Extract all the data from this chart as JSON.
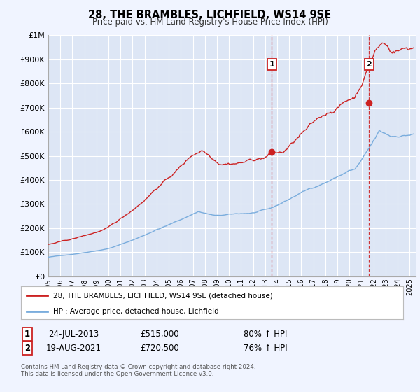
{
  "title": "28, THE BRAMBLES, LICHFIELD, WS14 9SE",
  "subtitle": "Price paid vs. HM Land Registry's House Price Index (HPI)",
  "bg_color": "#f0f4ff",
  "plot_bg_color": "#dde6f5",
  "grid_color": "#ffffff",
  "hpi_color": "#7aaddd",
  "price_color": "#cc2222",
  "ylim": [
    0,
    1000000
  ],
  "yticks": [
    0,
    100000,
    200000,
    300000,
    400000,
    500000,
    600000,
    700000,
    800000,
    900000,
    1000000
  ],
  "ytick_labels": [
    "£0",
    "£100K",
    "£200K",
    "£300K",
    "£400K",
    "£500K",
    "£600K",
    "£700K",
    "£800K",
    "£900K",
    "£1M"
  ],
  "xlim_start": 1995.0,
  "xlim_end": 2025.5,
  "xtick_years": [
    1995,
    1996,
    1997,
    1998,
    1999,
    2000,
    2001,
    2002,
    2003,
    2004,
    2005,
    2006,
    2007,
    2008,
    2009,
    2010,
    2011,
    2012,
    2013,
    2014,
    2015,
    2016,
    2017,
    2018,
    2019,
    2020,
    2021,
    2022,
    2023,
    2024,
    2025
  ],
  "sale1_x": 2013.56,
  "sale1_y": 515000,
  "sale1_label": "1",
  "sale2_x": 2021.63,
  "sale2_y": 720500,
  "sale2_label": "2",
  "legend_line1": "28, THE BRAMBLES, LICHFIELD, WS14 9SE (detached house)",
  "legend_line2": "HPI: Average price, detached house, Lichfield",
  "annotation1_box": "1",
  "annotation1_date": "24-JUL-2013",
  "annotation1_price": "£515,000",
  "annotation1_hpi": "80% ↑ HPI",
  "annotation2_box": "2",
  "annotation2_date": "19-AUG-2021",
  "annotation2_price": "£720,500",
  "annotation2_hpi": "76% ↑ HPI",
  "footnote": "Contains HM Land Registry data © Crown copyright and database right 2024.\nThis data is licensed under the Open Government Licence v3.0."
}
